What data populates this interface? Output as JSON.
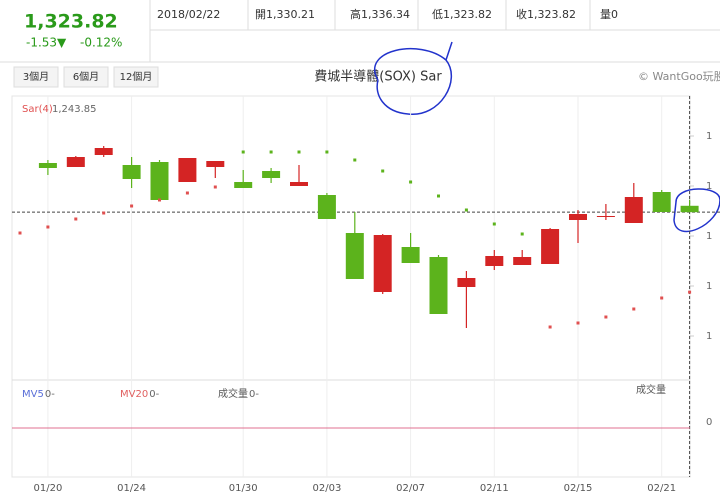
{
  "quote": {
    "price": "1,323.82",
    "change": "-1.53▼",
    "percent": "-0.12%",
    "date": "2018/02/22",
    "items": [
      "開1,330.21",
      "高1,336.34",
      "低1,323.82",
      "收1,323.82",
      "量0"
    ]
  },
  "ranges": [
    "3個月",
    "6個月",
    "12個月"
  ],
  "copyright": "© WantGoo玩股",
  "chart_data": {
    "type": "candlestick",
    "title": "費城半導體(SOX) Sar",
    "categories": [
      null,
      "01/20",
      null,
      null,
      "01/24",
      null,
      null,
      null,
      "01/30",
      null,
      null,
      "02/03",
      null,
      null,
      "02/07",
      null,
      null,
      "02/11",
      null,
      null,
      "02/15",
      null,
      null,
      "02/21",
      null
    ],
    "open": [
      null,
      1373,
      1369,
      1381,
      1371,
      1374,
      1354,
      1369,
      1354,
      1365,
      1350,
      1341,
      1303,
      1244,
      1289,
      1279,
      1249,
      1270,
      1271,
      1272,
      1316,
      1319,
      1313,
      1344,
      1330.21
    ],
    "high": [
      null,
      1376,
      1380,
      1390,
      1379,
      1376,
      1378,
      1375,
      1366,
      1368,
      1371,
      1343,
      1324,
      1302,
      1303,
      1281,
      1265,
      1286,
      1286,
      1308,
      1326,
      1332,
      1353,
      1346,
      1336.34
    ],
    "low": [
      null,
      1361,
      1369,
      1379,
      1348,
      1336,
      1354,
      1358,
      1348,
      1353,
      1350,
      1317,
      1257,
      1242,
      1273,
      1222,
      1208,
      1266,
      1271,
      1272,
      1293,
      1316,
      1313,
      1324,
      1323.82
    ],
    "close": [
      null,
      1368,
      1379,
      1388,
      1357,
      1336,
      1378,
      1375,
      1348,
      1358,
      1354,
      1317,
      1257,
      1301,
      1273,
      1222,
      1258,
      1280,
      1279,
      1307,
      1322,
      1320,
      1339,
      1324,
      1323.82
    ],
    "up_color": "#d42424",
    "down_color": "#5cb31c",
    "sar": {
      "name": "Sar(4)",
      "values": [
        1303,
        1309,
        1317,
        1323,
        1330,
        1336,
        1343,
        1349,
        1384,
        1384,
        1384,
        1384,
        1376,
        1365,
        1354,
        1340,
        1326,
        1312,
        1302,
        1209,
        1213,
        1219,
        1227,
        1238,
        1243.85
      ],
      "value_labels": [
        null,
        null,
        null,
        null,
        null,
        null,
        null,
        null,
        null,
        null,
        null,
        null,
        null,
        null,
        null,
        null,
        null,
        null,
        null,
        null,
        null,
        null,
        null,
        null,
        "1,243.85"
      ],
      "above_color": "#5cb31c",
      "below_color": "#e05050"
    },
    "ylim": [
      1180,
      1420
    ],
    "yticks": [
      {
        "value": 1400,
        "label": "1"
      },
      {
        "value": 1350,
        "label": "1"
      },
      {
        "value": 1300,
        "label": "1"
      },
      {
        "value": 1250,
        "label": "1"
      },
      {
        "value": 1200,
        "label": "1"
      }
    ],
    "volume": {
      "title": "成交量",
      "legends": [
        {
          "name": "MV5",
          "value_label": "0-",
          "color": "#5a6fd8"
        },
        {
          "name": "MV20",
          "value_label": "0-",
          "color": "#e06060"
        },
        {
          "name": "成交量",
          "value_label": "0-",
          "color": "#555"
        }
      ],
      "yticks": [
        0
      ]
    }
  }
}
